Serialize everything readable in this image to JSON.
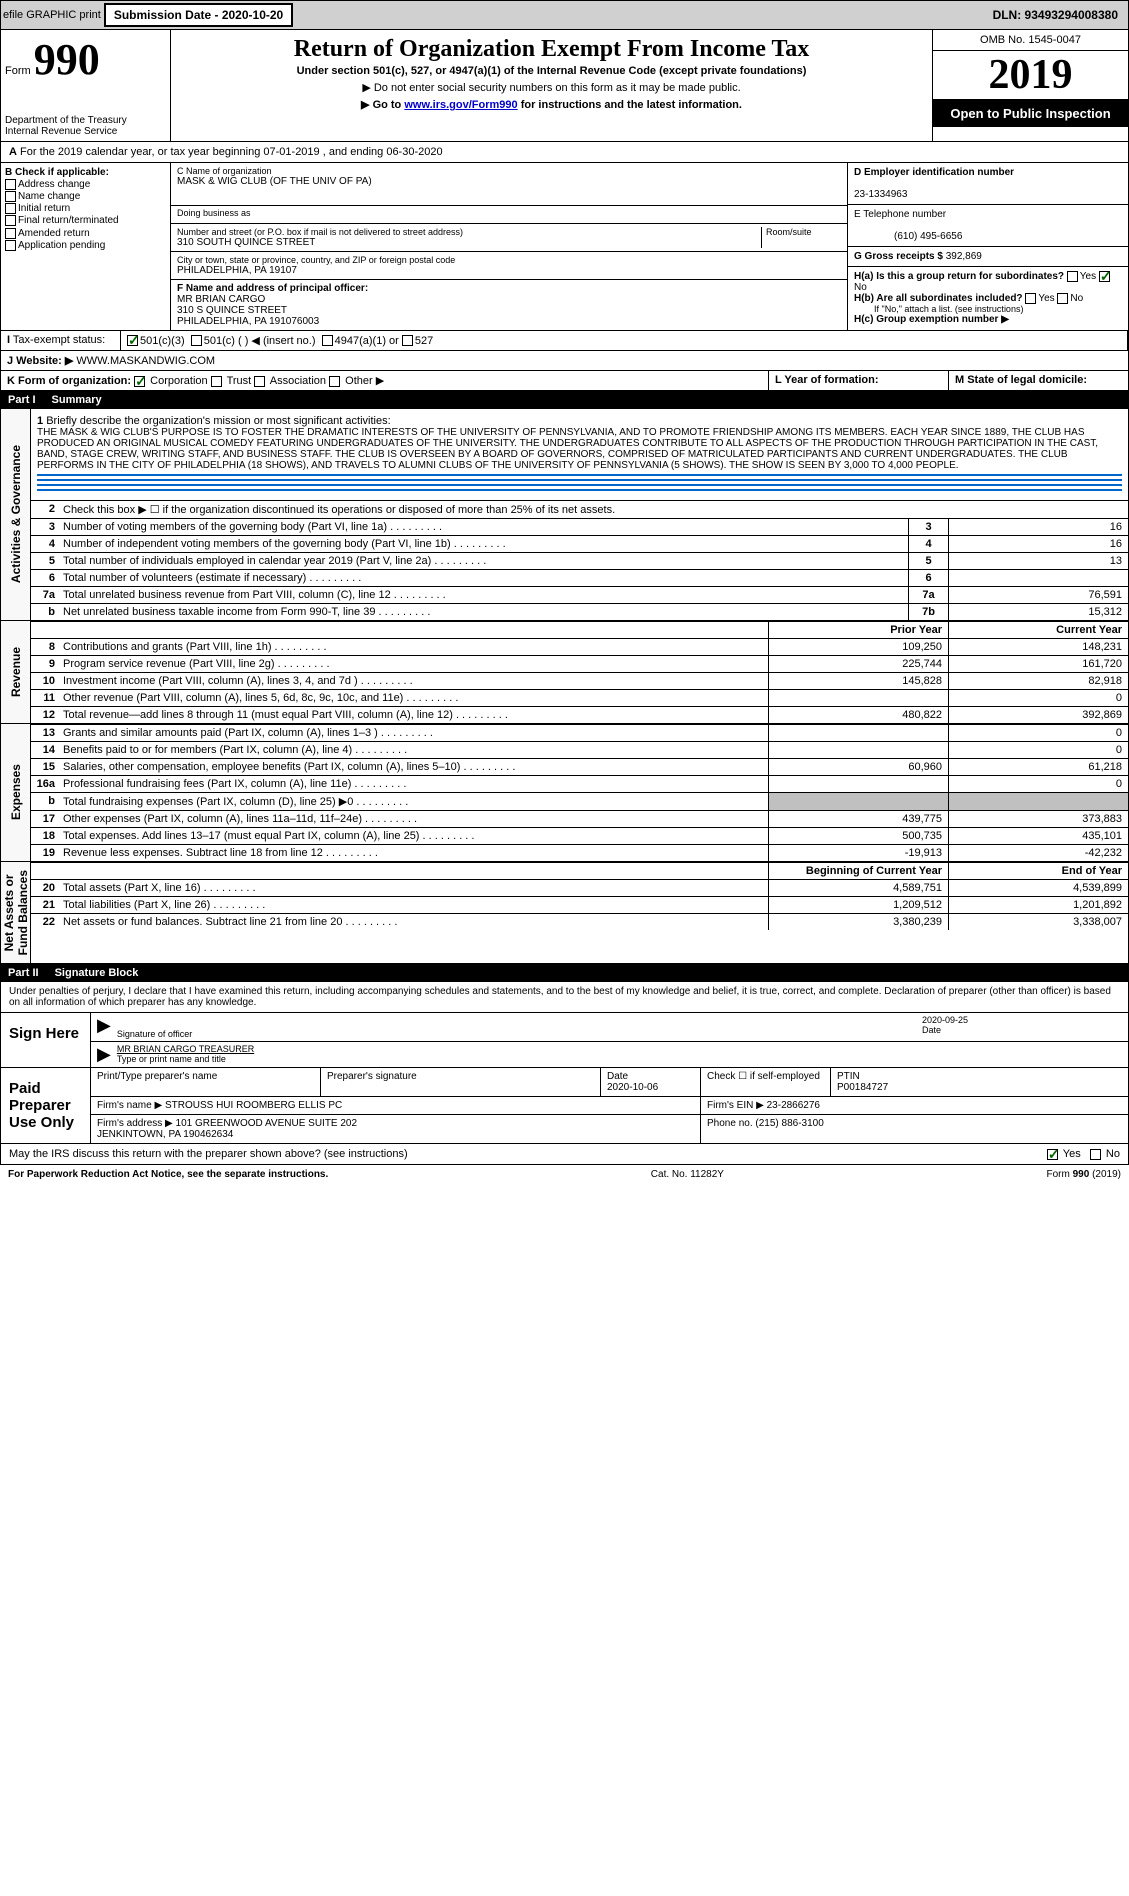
{
  "topbar": {
    "efile": "efile GRAPHIC print",
    "submission_btn": "Submission Date - 2020-10-20",
    "dln": "DLN: 93493294008380"
  },
  "header": {
    "form_word": "Form",
    "form_num": "990",
    "dept": "Department of the Treasury\nInternal Revenue Service",
    "title": "Return of Organization Exempt From Income Tax",
    "sub1": "Under section 501(c), 527, or 4947(a)(1) of the Internal Revenue Code (except private foundations)",
    "sub2": "▶ Do not enter social security numbers on this form as it may be made public.",
    "sub3_pre": "▶ Go to ",
    "sub3_link": "www.irs.gov/Form990",
    "sub3_post": " for instructions and the latest information.",
    "omb": "OMB No. 1545-0047",
    "year": "2019",
    "open_public": "Open to Public Inspection"
  },
  "period": "For the 2019 calendar year, or tax year beginning 07-01-2019  , and ending 06-30-2020",
  "checkboxes": {
    "heading": "B Check if applicable:",
    "items": [
      "Address change",
      "Name change",
      "Initial return",
      "Final return/terminated",
      "Amended return",
      "Application pending"
    ]
  },
  "org": {
    "name_label": "C Name of organization",
    "name": "MASK & WIG CLUB (OF THE UNIV OF PA)",
    "dba_label": "Doing business as",
    "dba": "",
    "addr_label": "Number and street (or P.O. box if mail is not delivered to street address)",
    "room_label": "Room/suite",
    "addr": "310 SOUTH QUINCE STREET",
    "city_label": "City or town, state or province, country, and ZIP or foreign postal code",
    "city": "PHILADELPHIA, PA  19107",
    "officer_label": "F Name and address of principal officer:",
    "officer": "MR BRIAN CARGO\n310 S QUINCE STREET\nPHILADELPHIA, PA  191076003"
  },
  "right": {
    "ein_label": "D Employer identification number",
    "ein": "23-1334963",
    "phone_label": "E Telephone number",
    "phone": "(610) 495-6656",
    "gross_label": "G Gross receipts $",
    "gross": "392,869",
    "ha_label": "H(a)  Is this a group return for subordinates?",
    "hb_label": "H(b)  Are all subordinates included?",
    "hb_note": "If \"No,\" attach a list. (see instructions)",
    "hc_label": "H(c)  Group exemption number ▶"
  },
  "tax_exempt": {
    "label": "Tax-exempt status:",
    "opts": [
      "501(c)(3)",
      "501(c) (  ) ◀ (insert no.)",
      "4947(a)(1) or",
      "527"
    ]
  },
  "website": {
    "label": "J   Website: ▶",
    "value": "WWW.MASKANDWIG.COM"
  },
  "form_org": {
    "label": "K Form of organization:",
    "opts": [
      "Corporation",
      "Trust",
      "Association",
      "Other ▶"
    ],
    "year_label": "L Year of formation:",
    "domicile_label": "M State of legal domicile:"
  },
  "part1": {
    "num": "Part I",
    "title": "Summary"
  },
  "governance_label": "Activities & Governance",
  "revenue_label": "Revenue",
  "expenses_label": "Expenses",
  "netassets_label": "Net Assets or\nFund Balances",
  "mission": {
    "num": "1",
    "label": "Briefly describe the organization's mission or most significant activities:",
    "text": "THE MASK & WIG CLUB'S PURPOSE IS TO FOSTER THE DRAMATIC INTERESTS OF THE UNIVERSITY OF PENNSYLVANIA, AND TO PROMOTE FRIENDSHIP AMONG ITS MEMBERS. EACH YEAR SINCE 1889, THE CLUB HAS PRODUCED AN ORIGINAL MUSICAL COMEDY FEATURING UNDERGRADUATES OF THE UNIVERSITY. THE UNDERGRADUATES CONTRIBUTE TO ALL ASPECTS OF THE PRODUCTION THROUGH PARTICIPATION IN THE CAST, BAND, STAGE CREW, WRITING STAFF, AND BUSINESS STAFF. THE CLUB IS OVERSEEN BY A BOARD OF GOVERNORS, COMPRISED OF MATRICULATED PARTICIPANTS AND CURRENT UNDERGRADUATES. THE CLUB PERFORMS IN THE CITY OF PHILADELPHIA (18 SHOWS), AND TRAVELS TO ALUMNI CLUBS OF THE UNIVERSITY OF PENNSYLVANIA (5 SHOWS). THE SHOW IS SEEN BY 3,000 TO 4,000 PEOPLE."
  },
  "line2": "Check this box ▶ ☐ if the organization discontinued its operations or disposed of more than 25% of its net assets.",
  "gov_rows": [
    {
      "n": "3",
      "label": "Number of voting members of the governing body (Part VI, line 1a)",
      "box": "3",
      "val": "16"
    },
    {
      "n": "4",
      "label": "Number of independent voting members of the governing body (Part VI, line 1b)",
      "box": "4",
      "val": "16"
    },
    {
      "n": "5",
      "label": "Total number of individuals employed in calendar year 2019 (Part V, line 2a)",
      "box": "5",
      "val": "13"
    },
    {
      "n": "6",
      "label": "Total number of volunteers (estimate if necessary)",
      "box": "6",
      "val": ""
    },
    {
      "n": "7a",
      "label": "Total unrelated business revenue from Part VIII, column (C), line 12",
      "box": "7a",
      "val": "76,591"
    },
    {
      "n": "b",
      "label": "Net unrelated business taxable income from Form 990-T, line 39",
      "box": "7b",
      "val": "15,312"
    }
  ],
  "rev_header": {
    "prior": "Prior Year",
    "current": "Current Year"
  },
  "rev_rows": [
    {
      "n": "8",
      "label": "Contributions and grants (Part VIII, line 1h)",
      "prior": "109,250",
      "curr": "148,231"
    },
    {
      "n": "9",
      "label": "Program service revenue (Part VIII, line 2g)",
      "prior": "225,744",
      "curr": "161,720"
    },
    {
      "n": "10",
      "label": "Investment income (Part VIII, column (A), lines 3, 4, and 7d )",
      "prior": "145,828",
      "curr": "82,918"
    },
    {
      "n": "11",
      "label": "Other revenue (Part VIII, column (A), lines 5, 6d, 8c, 9c, 10c, and 11e)",
      "prior": "",
      "curr": "0"
    },
    {
      "n": "12",
      "label": "Total revenue—add lines 8 through 11 (must equal Part VIII, column (A), line 12)",
      "prior": "480,822",
      "curr": "392,869"
    }
  ],
  "exp_rows": [
    {
      "n": "13",
      "label": "Grants and similar amounts paid (Part IX, column (A), lines 1–3 )",
      "prior": "",
      "curr": "0"
    },
    {
      "n": "14",
      "label": "Benefits paid to or for members (Part IX, column (A), line 4)",
      "prior": "",
      "curr": "0"
    },
    {
      "n": "15",
      "label": "Salaries, other compensation, employee benefits (Part IX, column (A), lines 5–10)",
      "prior": "60,960",
      "curr": "61,218"
    },
    {
      "n": "16a",
      "label": "Professional fundraising fees (Part IX, column (A), line 11e)",
      "prior": "",
      "curr": "0"
    },
    {
      "n": "b",
      "label": "Total fundraising expenses (Part IX, column (D), line 25) ▶0",
      "prior": "GRAY",
      "curr": "GRAY"
    },
    {
      "n": "17",
      "label": "Other expenses (Part IX, column (A), lines 11a–11d, 11f–24e)",
      "prior": "439,775",
      "curr": "373,883"
    },
    {
      "n": "18",
      "label": "Total expenses. Add lines 13–17 (must equal Part IX, column (A), line 25)",
      "prior": "500,735",
      "curr": "435,101"
    },
    {
      "n": "19",
      "label": "Revenue less expenses. Subtract line 18 from line 12",
      "prior": "-19,913",
      "curr": "-42,232"
    }
  ],
  "net_header": {
    "begin": "Beginning of Current Year",
    "end": "End of Year"
  },
  "net_rows": [
    {
      "n": "20",
      "label": "Total assets (Part X, line 16)",
      "prior": "4,589,751",
      "curr": "4,539,899"
    },
    {
      "n": "21",
      "label": "Total liabilities (Part X, line 26)",
      "prior": "1,209,512",
      "curr": "1,201,892"
    },
    {
      "n": "22",
      "label": "Net assets or fund balances. Subtract line 21 from line 20",
      "prior": "3,380,239",
      "curr": "3,338,007"
    }
  ],
  "part2": {
    "num": "Part II",
    "title": "Signature Block"
  },
  "sig": {
    "declaration": "Under penalties of perjury, I declare that I have examined this return, including accompanying schedules and statements, and to the best of my knowledge and belief, it is true, correct, and complete. Declaration of preparer (other than officer) is based on all information of which preparer has any knowledge.",
    "sign_here": "Sign Here",
    "sig_officer": "Signature of officer",
    "date": "2020-09-25",
    "date_label": "Date",
    "name": "MR BRIAN CARGO  TREASURER",
    "name_label": "Type or print name and title",
    "paid": "Paid Preparer Use Only",
    "prep_name_label": "Print/Type preparer's name",
    "prep_sig_label": "Preparer's signature",
    "prep_date_label": "Date",
    "prep_date": "2020-10-06",
    "check_label": "Check ☐ if self-employed",
    "ptin_label": "PTIN",
    "ptin": "P00184727",
    "firm_name_label": "Firm's name    ▶",
    "firm_name": "STROUSS HUI ROOMBERG ELLIS PC",
    "firm_ein_label": "Firm's EIN ▶",
    "firm_ein": "23-2866276",
    "firm_addr_label": "Firm's address ▶",
    "firm_addr": "101 GREENWOOD AVENUE SUITE 202\nJENKINTOWN, PA  190462634",
    "firm_phone_label": "Phone no.",
    "firm_phone": "(215) 886-3100",
    "discuss": "May the IRS discuss this return with the preparer shown above? (see instructions)"
  },
  "footer": {
    "left": "For Paperwork Reduction Act Notice, see the separate instructions.",
    "mid": "Cat. No. 11282Y",
    "right": "Form 990 (2019)"
  }
}
